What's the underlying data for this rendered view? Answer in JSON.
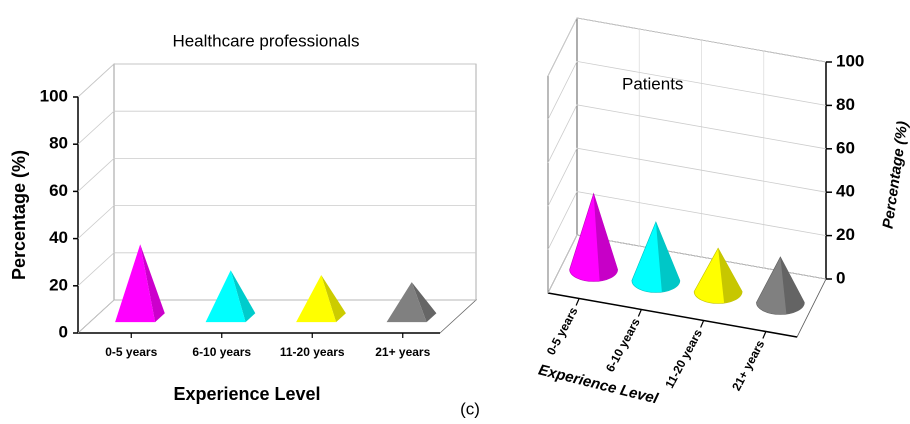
{
  "figure_label": "(c)",
  "chart_data": [
    {
      "type": "pyramid3d",
      "title": "Healthcare professionals",
      "x_label": "Experience Level",
      "y_label": "Percentage (%)",
      "categories": [
        "0-5 years",
        "6-10 years",
        "11-20 years",
        "21+ years"
      ],
      "values": [
        31,
        20,
        18,
        15
      ],
      "colors": [
        "#ff00ff",
        "#00ffff",
        "#ffff00",
        "#808080"
      ],
      "ylim": [
        0,
        100
      ],
      "yticks": [
        0,
        20,
        40,
        60,
        80,
        100
      ],
      "grid": true
    },
    {
      "type": "cone3d",
      "title": "Patients",
      "x_label": "Experience Level",
      "y_label": "Percentage (%)",
      "categories": [
        "0-5 years",
        "6-10 years",
        "11-20 years",
        "21+ years"
      ],
      "values": [
        35,
        27,
        20,
        21
      ],
      "colors": [
        "#ff00ff",
        "#00ffff",
        "#ffff00",
        "#808080"
      ],
      "ylim": [
        0,
        100
      ],
      "yticks": [
        0,
        20,
        40,
        60,
        80,
        100
      ],
      "grid": true
    }
  ]
}
